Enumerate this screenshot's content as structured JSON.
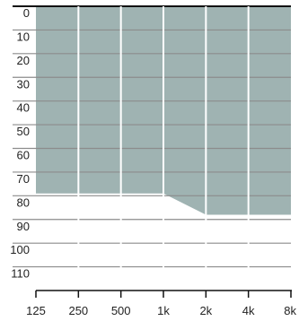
{
  "chart_data": {
    "type": "area",
    "title": "",
    "xlabel": "",
    "ylabel": "",
    "x_scale": "log2",
    "x_ticks": [
      "125",
      "250",
      "500",
      "1k",
      "2k",
      "4k",
      "8k"
    ],
    "x_values_hz": [
      125,
      250,
      500,
      1000,
      2000,
      4000,
      8000
    ],
    "y_ticks": [
      0,
      10,
      20,
      30,
      40,
      50,
      60,
      70,
      80,
      90,
      100,
      110
    ],
    "y_inverted": true,
    "ylim": [
      0,
      120
    ],
    "grid": true,
    "series": [
      {
        "x": [
          125,
          250,
          500,
          1000,
          2000,
          4000,
          8000
        ],
        "y": [
          79,
          79,
          79,
          79,
          88,
          88,
          88
        ]
      }
    ],
    "colors": {
      "fill": "#9fb3b2",
      "grid": "#8c8c8c",
      "axis": "#111111",
      "vertical_grid": "#ffffff"
    }
  }
}
